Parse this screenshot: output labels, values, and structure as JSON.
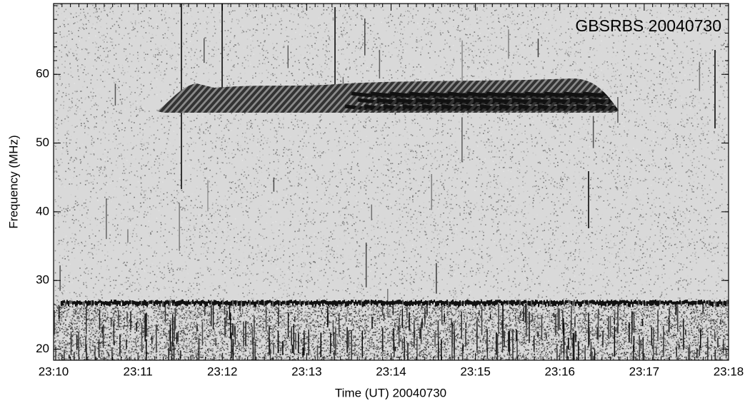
{
  "chart_data": {
    "type": "spectrogram",
    "title": "GBSRBS 20040730",
    "xlabel": "Time (UT) 20040730",
    "ylabel": "Frequency (MHz)",
    "xlim": [
      1390,
      1398
    ],
    "xticks": [
      {
        "value": 1390,
        "label": "23:10"
      },
      {
        "value": 1391,
        "label": "23:11"
      },
      {
        "value": 1392,
        "label": "23:12"
      },
      {
        "value": 1393,
        "label": "23:13"
      },
      {
        "value": 1394,
        "label": "23:14"
      },
      {
        "value": 1395,
        "label": "23:15"
      },
      {
        "value": 1396,
        "label": "23:16"
      },
      {
        "value": 1397,
        "label": "23:17"
      },
      {
        "value": 1398,
        "label": "23:18"
      }
    ],
    "ylim": [
      18.4,
      70.3
    ],
    "yticks": [
      20,
      30,
      40,
      50,
      60
    ]
  }
}
